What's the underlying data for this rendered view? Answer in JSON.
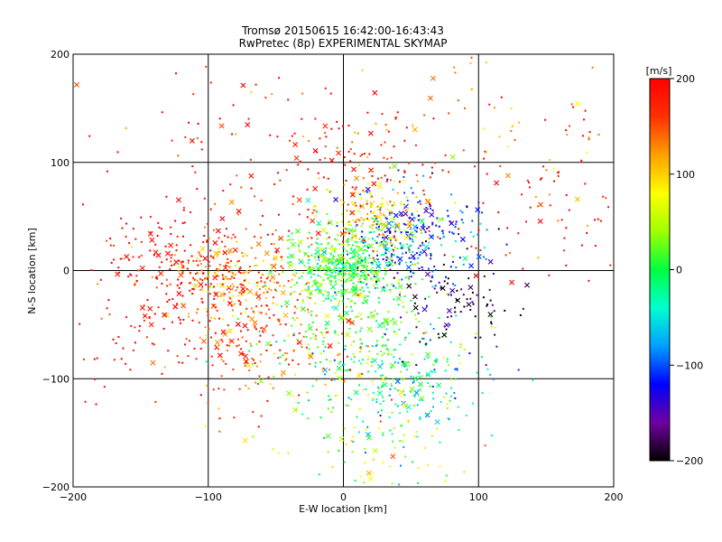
{
  "chart_data": {
    "type": "scatter",
    "title": "Tromsø 20150615 16:42:00-16:43:43",
    "subtitle": "RwPretec (8p) EXPERIMENTAL SKYMAP",
    "xlabel": "E-W location [km]",
    "ylabel": "N-S location [km]",
    "xlim": [
      -200,
      200
    ],
    "ylim": [
      -200,
      200
    ],
    "x_ticks": [
      "−200",
      "−100",
      "0",
      "100",
      "200"
    ],
    "y_ticks": [
      "−200",
      "−100",
      "0",
      "100",
      "200"
    ],
    "x_tick_values": [
      -200,
      -100,
      0,
      100,
      200
    ],
    "y_tick_values": [
      -200,
      -100,
      0,
      100,
      200
    ],
    "grid": true,
    "colorbar": {
      "label": "[m/s]",
      "min": -200,
      "max": 200,
      "ticks": [
        "200",
        "100",
        "0",
        "−100",
        "−200"
      ],
      "tick_values": [
        200,
        100,
        0,
        -100,
        -200
      ],
      "colors": [
        "#000000",
        "#7000a0",
        "#0000ff",
        "#00a0ff",
        "#00ffd0",
        "#00ff40",
        "#a0ff00",
        "#ffff00",
        "#ffa000",
        "#ff3000",
        "#ff0000"
      ]
    },
    "markers": [
      "dot",
      "x"
    ],
    "clusters": [
      {
        "x": 0,
        "y": 5,
        "spread": 20,
        "value": 10
      },
      {
        "x": 50,
        "y": 30,
        "spread": 25,
        "value": -110
      },
      {
        "x": -80,
        "y": -10,
        "spread": 22,
        "value": 130
      },
      {
        "x": -120,
        "y": 10,
        "spread": 30,
        "value": 200
      },
      {
        "x": 10,
        "y": -60,
        "spread": 35,
        "value": 20
      },
      {
        "x": 50,
        "y": -110,
        "spread": 30,
        "value": -40
      },
      {
        "x": 80,
        "y": -30,
        "spread": 25,
        "value": -180
      },
      {
        "x": -60,
        "y": -70,
        "spread": 35,
        "value": 160
      },
      {
        "x": 0,
        "y": 90,
        "spread": 40,
        "value": 180
      },
      {
        "x": 20,
        "y": 50,
        "spread": 20,
        "value": 90
      },
      {
        "x": -150,
        "y": -50,
        "spread": 40,
        "value": 200
      },
      {
        "x": 150,
        "y": 60,
        "spread": 45,
        "value": 200
      },
      {
        "x": 100,
        "y": 130,
        "spread": 60,
        "value": 120
      },
      {
        "x": -100,
        "y": 140,
        "spread": 60,
        "value": 190
      },
      {
        "x": 20,
        "y": -150,
        "spread": 40,
        "value": 60
      }
    ]
  }
}
